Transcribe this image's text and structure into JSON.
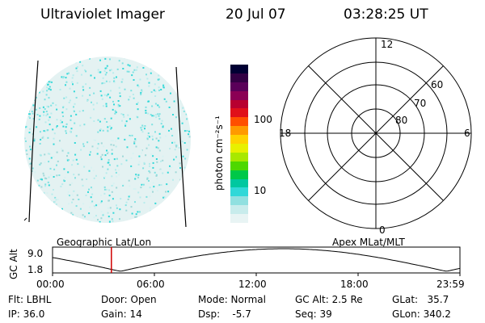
{
  "header": {
    "title": "Ultraviolet Imager",
    "date": "20 Jul 07",
    "time": "03:28:25 UT"
  },
  "colorbar": {
    "unit_label": "photon cm⁻²s⁻¹",
    "ticks": [
      "100",
      "10"
    ],
    "colors": [
      "#000033",
      "#330044",
      "#5a0059",
      "#8b0055",
      "#b80030",
      "#e0101a",
      "#ff5000",
      "#ff9a00",
      "#ffd200",
      "#e8f000",
      "#a8e800",
      "#4ed800",
      "#00c848",
      "#00c8a0",
      "#30d8d8",
      "#90e0e0",
      "#c8ecec",
      "#e8f4f4"
    ]
  },
  "polar_plot": {
    "mlt_labels": {
      "top": "12",
      "left": "18",
      "right": "6",
      "bottom": "0"
    },
    "lat_labels": [
      "60",
      "70",
      "80"
    ]
  },
  "orbit_panel": {
    "left_label": "Geographic Lat/Lon",
    "right_label": "Apex MLat/MLT",
    "y_axis_label": "GC Alt",
    "y_ticks": [
      "9.0",
      "1.8"
    ],
    "x_ticks": [
      "00:00",
      "06:00",
      "12:00",
      "18:00",
      "23:59"
    ],
    "current_time_marker": "03:28",
    "marker_color": "#d00000"
  },
  "status": {
    "flt": "Flt: LBHL",
    "ip": "IP: 36.0",
    "door": "Door: Open",
    "gain": "Gain: 14",
    "mode": "Mode: Normal",
    "dsp": "Dsp:    -5.7",
    "gc_alt": "GC Alt: 2.5 Re",
    "seq": "Seq: 39",
    "glat": "GLat:   35.7",
    "glon": "GLon: 340.2"
  }
}
